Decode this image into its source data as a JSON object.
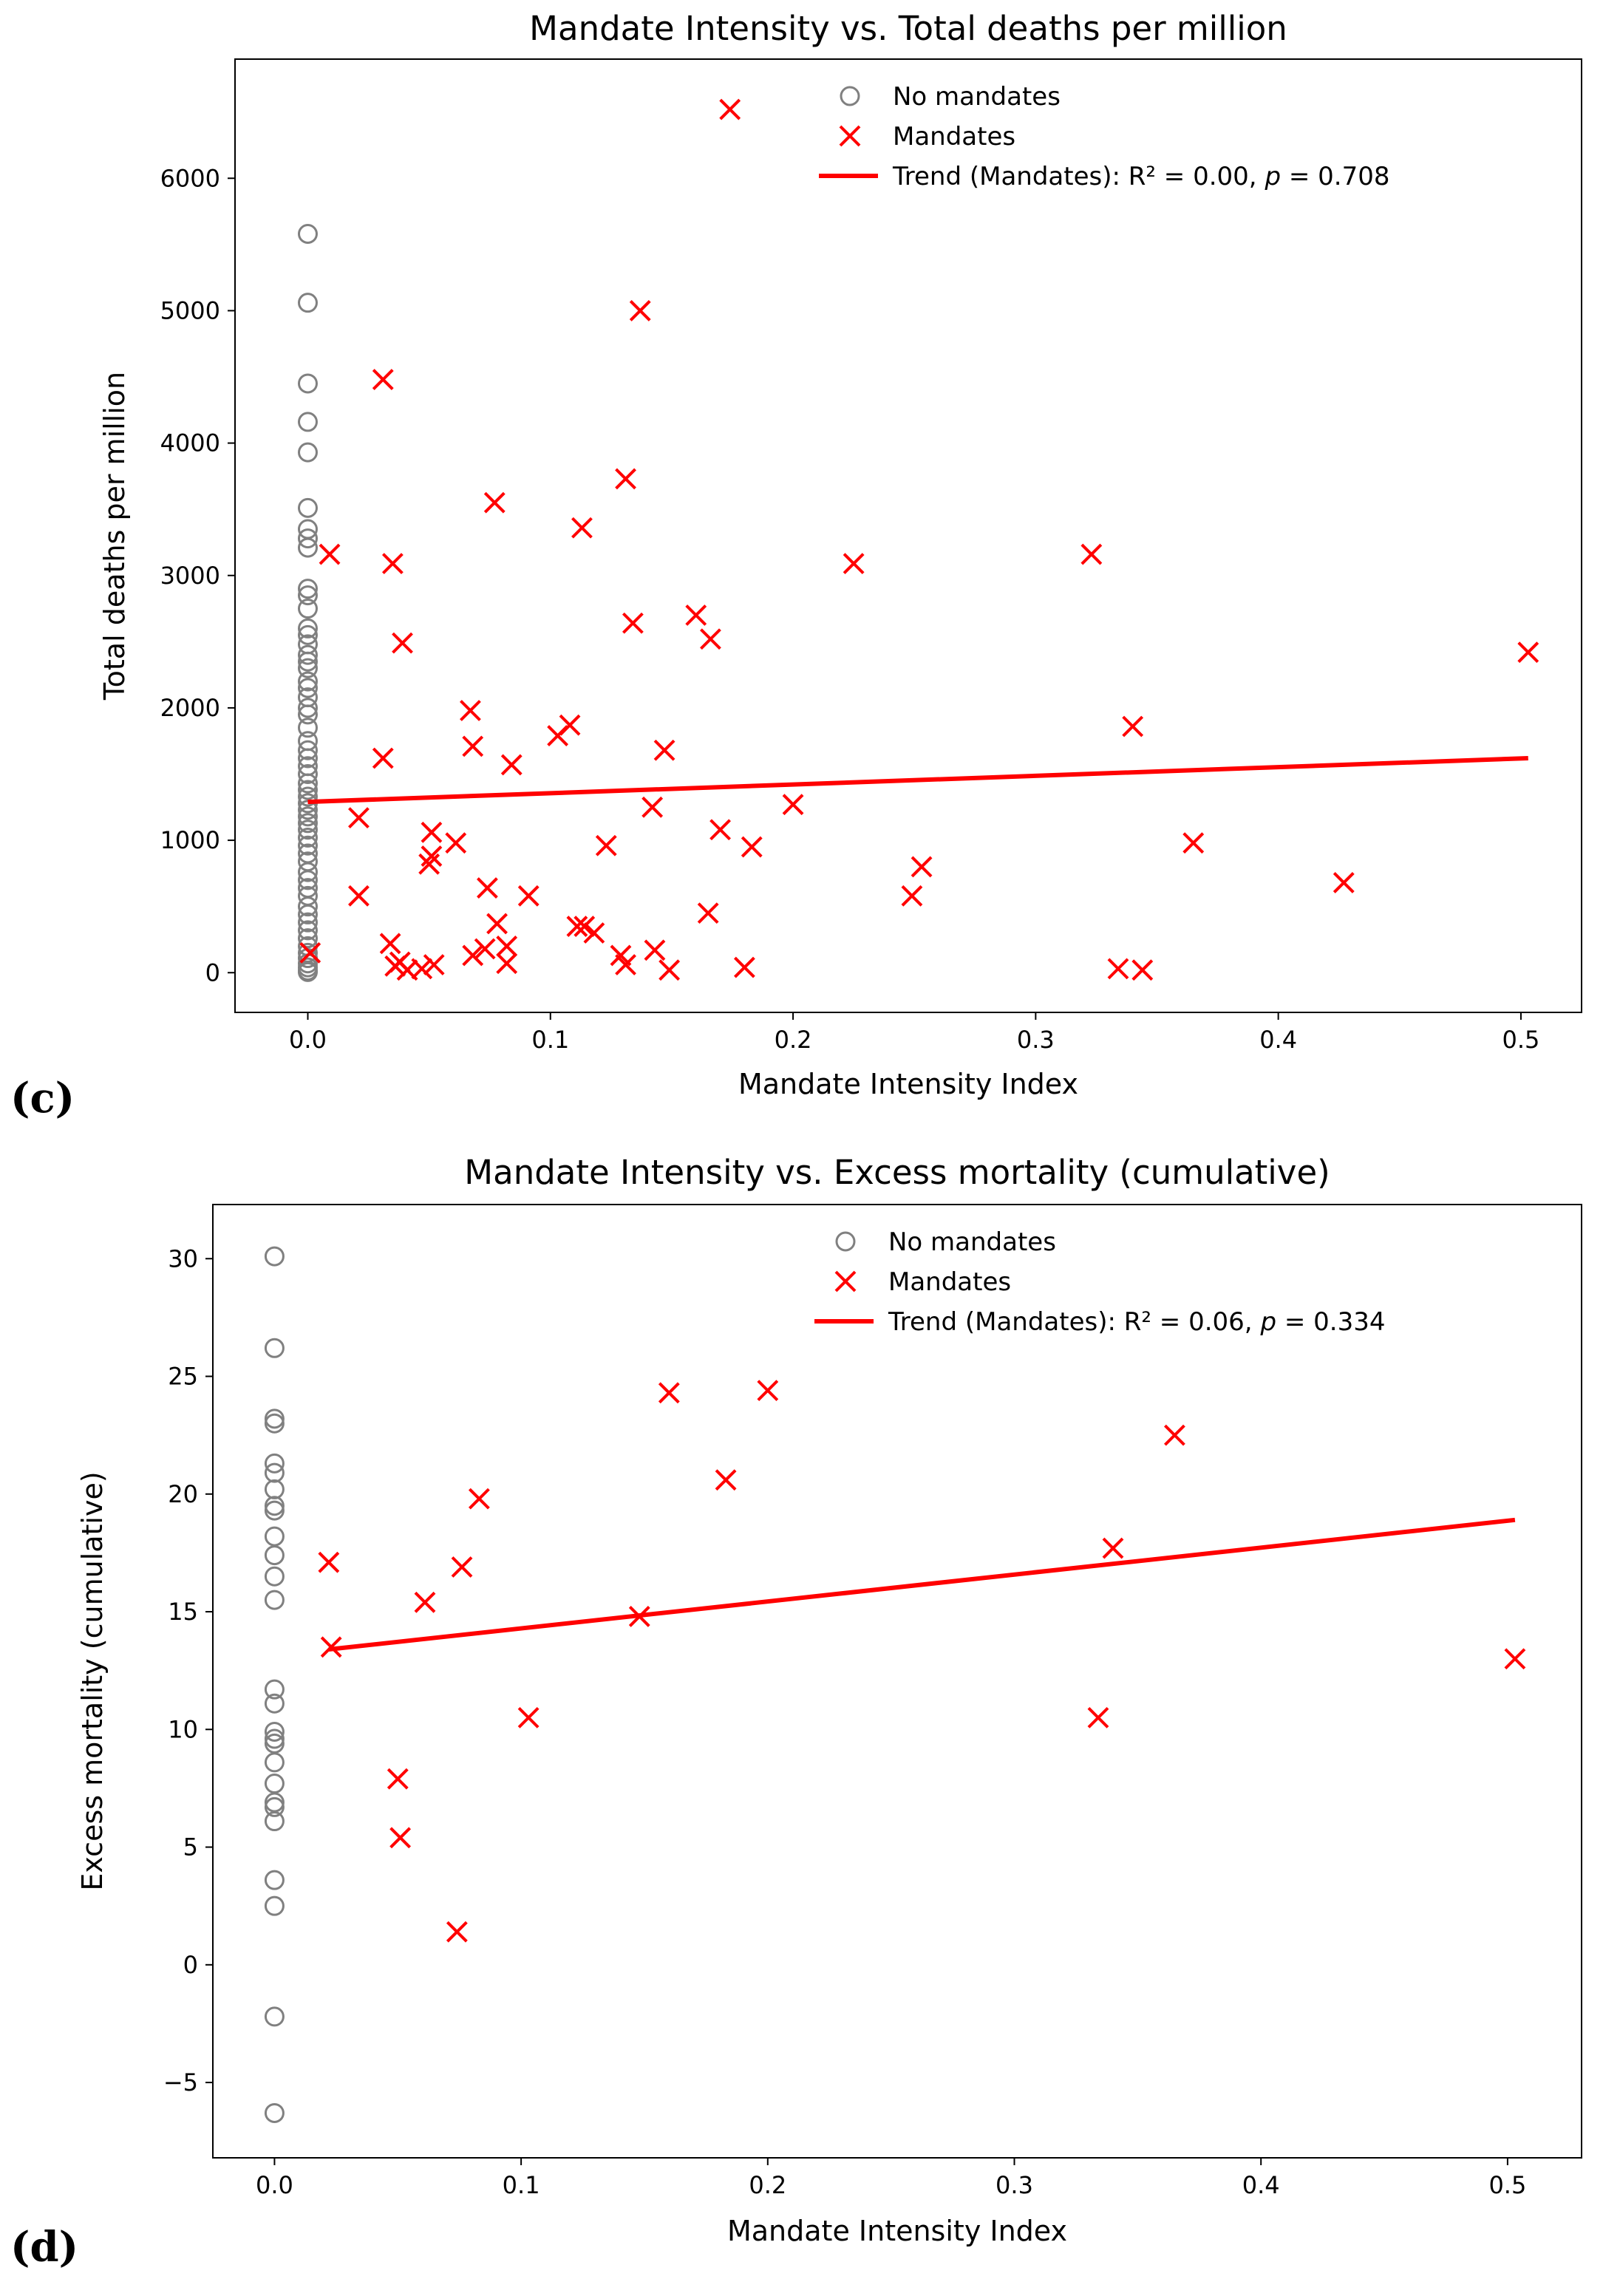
{
  "chart_data": [
    {
      "panel_label": "(c)",
      "type": "scatter",
      "title": "Mandate Intensity vs. Total deaths per million",
      "xlabel": "Mandate Intensity Index",
      "ylabel": "Total deaths per million",
      "xlim": [
        -0.03,
        0.525
      ],
      "ylim": [
        -300,
        6900
      ],
      "xticks": [
        0.0,
        0.1,
        0.2,
        0.3,
        0.4,
        0.5
      ],
      "xtick_labels": [
        "0.0",
        "0.1",
        "0.2",
        "0.3",
        "0.4",
        "0.5"
      ],
      "yticks": [
        0,
        1000,
        2000,
        3000,
        4000,
        5000,
        6000
      ],
      "ytick_labels": [
        "0",
        "1000",
        "2000",
        "3000",
        "4000",
        "5000",
        "6000"
      ],
      "legend_position": "top-center",
      "series": [
        {
          "name": "No mandates",
          "marker": "circle",
          "color": "#808080",
          "points": [
            [
              0,
              5580
            ],
            [
              0,
              5060
            ],
            [
              0,
              4450
            ],
            [
              0,
              4160
            ],
            [
              0,
              3930
            ],
            [
              0,
              3510
            ],
            [
              0,
              3350
            ],
            [
              0,
              3280
            ],
            [
              0,
              3210
            ],
            [
              0,
              2900
            ],
            [
              0,
              2850
            ],
            [
              0,
              2750
            ],
            [
              0,
              2600
            ],
            [
              0,
              2550
            ],
            [
              0,
              2480
            ],
            [
              0,
              2400
            ],
            [
              0,
              2350
            ],
            [
              0,
              2300
            ],
            [
              0,
              2200
            ],
            [
              0,
              2150
            ],
            [
              0,
              2080
            ],
            [
              0,
              2000
            ],
            [
              0,
              1950
            ],
            [
              0,
              1850
            ],
            [
              0,
              1750
            ],
            [
              0,
              1680
            ],
            [
              0,
              1620
            ],
            [
              0,
              1560
            ],
            [
              0,
              1500
            ],
            [
              0,
              1430
            ],
            [
              0,
              1380
            ],
            [
              0,
              1330
            ],
            [
              0,
              1280
            ],
            [
              0,
              1230
            ],
            [
              0,
              1180
            ],
            [
              0,
              1130
            ],
            [
              0,
              1080
            ],
            [
              0,
              1020
            ],
            [
              0,
              960
            ],
            [
              0,
              900
            ],
            [
              0,
              840
            ],
            [
              0,
              760
            ],
            [
              0,
              700
            ],
            [
              0,
              640
            ],
            [
              0,
              580
            ],
            [
              0,
              500
            ],
            [
              0,
              440
            ],
            [
              0,
              380
            ],
            [
              0,
              320
            ],
            [
              0,
              260
            ],
            [
              0,
              200
            ],
            [
              0,
              150
            ],
            [
              0,
              110
            ],
            [
              0,
              70
            ],
            [
              0,
              40
            ],
            [
              0,
              15
            ],
            [
              0,
              5
            ]
          ]
        },
        {
          "name": "Mandates",
          "marker": "x",
          "color": "#ff0000",
          "points": [
            [
              0.174,
              6520
            ],
            [
              0.137,
              5000
            ],
            [
              0.031,
              4480
            ],
            [
              0.131,
              3730
            ],
            [
              0.077,
              3550
            ],
            [
              0.113,
              3360
            ],
            [
              0.009,
              3160
            ],
            [
              0.035,
              3090
            ],
            [
              0.225,
              3090
            ],
            [
              0.323,
              3160
            ],
            [
              0.16,
              2700
            ],
            [
              0.134,
              2640
            ],
            [
              0.039,
              2490
            ],
            [
              0.166,
              2520
            ],
            [
              0.503,
              2420
            ],
            [
              0.067,
              1980
            ],
            [
              0.108,
              1870
            ],
            [
              0.103,
              1790
            ],
            [
              0.34,
              1860
            ],
            [
              0.068,
              1710
            ],
            [
              0.147,
              1680
            ],
            [
              0.031,
              1620
            ],
            [
              0.084,
              1570
            ],
            [
              0.142,
              1250
            ],
            [
              0.2,
              1270
            ],
            [
              0.021,
              1170
            ],
            [
              0.17,
              1080
            ],
            [
              0.051,
              1060
            ],
            [
              0.061,
              980
            ],
            [
              0.123,
              960
            ],
            [
              0.183,
              950
            ],
            [
              0.365,
              980
            ],
            [
              0.051,
              880
            ],
            [
              0.05,
              820
            ],
            [
              0.253,
              800
            ],
            [
              0.427,
              680
            ],
            [
              0.074,
              640
            ],
            [
              0.021,
              580
            ],
            [
              0.091,
              580
            ],
            [
              0.249,
              580
            ],
            [
              0.165,
              450
            ],
            [
              0.078,
              370
            ],
            [
              0.111,
              350
            ],
            [
              0.114,
              350
            ],
            [
              0.118,
              300
            ],
            [
              0.034,
              220
            ],
            [
              0.082,
              200
            ],
            [
              0.073,
              180
            ],
            [
              0.143,
              170
            ],
            [
              0.129,
              130
            ],
            [
              0.068,
              130
            ],
            [
              0.001,
              150
            ],
            [
              0.038,
              80
            ],
            [
              0.036,
              50
            ],
            [
              0.082,
              70
            ],
            [
              0.052,
              60
            ],
            [
              0.131,
              60
            ],
            [
              0.18,
              40
            ],
            [
              0.149,
              20
            ],
            [
              0.041,
              20
            ],
            [
              0.047,
              30
            ],
            [
              0.334,
              30
            ],
            [
              0.344,
              20
            ]
          ]
        }
      ],
      "trend": {
        "name": "Trend (Mandates): R² = 0.00, p = 0.708",
        "label_parts": [
          "Trend (Mandates): R² = 0.00, ",
          "p",
          " = 0.708"
        ],
        "color": "#ff0000",
        "x": [
          0.0,
          0.503
        ],
        "y": [
          1290,
          1620
        ]
      }
    },
    {
      "panel_label": "(d)",
      "type": "scatter",
      "title": "Mandate Intensity vs. Excess mortality (cumulative)",
      "xlabel": "Mandate Intensity Index",
      "ylabel": "Excess mortality (cumulative)",
      "xlim": [
        -0.025,
        0.53
      ],
      "ylim": [
        -8.2,
        32.3
      ],
      "xticks": [
        0.0,
        0.1,
        0.2,
        0.3,
        0.4,
        0.5
      ],
      "xtick_labels": [
        "0.0",
        "0.1",
        "0.2",
        "0.3",
        "0.4",
        "0.5"
      ],
      "yticks": [
        -5,
        0,
        5,
        10,
        15,
        20,
        25,
        30
      ],
      "ytick_labels": [
        "−5",
        "0",
        "5",
        "10",
        "15",
        "20",
        "25",
        "30"
      ],
      "legend_position": "top-center",
      "series": [
        {
          "name": "No mandates",
          "marker": "circle",
          "color": "#808080",
          "points": [
            [
              0,
              30.1
            ],
            [
              0,
              26.2
            ],
            [
              0,
              23.2
            ],
            [
              0,
              23.0
            ],
            [
              0,
              21.3
            ],
            [
              0,
              20.9
            ],
            [
              0,
              20.2
            ],
            [
              0,
              19.5
            ],
            [
              0,
              19.3
            ],
            [
              0,
              18.2
            ],
            [
              0,
              17.4
            ],
            [
              0,
              16.5
            ],
            [
              0,
              15.5
            ],
            [
              0,
              11.7
            ],
            [
              0,
              11.1
            ],
            [
              0,
              9.9
            ],
            [
              0,
              9.6
            ],
            [
              0,
              9.4
            ],
            [
              0,
              8.6
            ],
            [
              0,
              7.7
            ],
            [
              0,
              6.9
            ],
            [
              0,
              6.7
            ],
            [
              0,
              6.1
            ],
            [
              0,
              3.6
            ],
            [
              0,
              2.5
            ],
            [
              0,
              -2.2
            ],
            [
              0,
              -6.3
            ]
          ]
        },
        {
          "name": "Mandates",
          "marker": "x",
          "color": "#ff0000",
          "points": [
            [
              0.16,
              24.3
            ],
            [
              0.2,
              24.4
            ],
            [
              0.365,
              22.5
            ],
            [
              0.183,
              20.6
            ],
            [
              0.083,
              19.8
            ],
            [
              0.34,
              17.7
            ],
            [
              0.022,
              17.1
            ],
            [
              0.076,
              16.9
            ],
            [
              0.061,
              15.4
            ],
            [
              0.148,
              14.8
            ],
            [
              0.023,
              13.5
            ],
            [
              0.503,
              13.0
            ],
            [
              0.103,
              10.5
            ],
            [
              0.334,
              10.5
            ],
            [
              0.05,
              7.9
            ],
            [
              0.051,
              5.4
            ],
            [
              0.074,
              1.4
            ]
          ]
        }
      ],
      "trend": {
        "name": "Trend (Mandates): R² = 0.06, p = 0.334",
        "label_parts": [
          "Trend (Mandates): R² = 0.06, ",
          "p",
          " = 0.334"
        ],
        "color": "#ff0000",
        "x": [
          0.022,
          0.503
        ],
        "y": [
          13.4,
          18.9
        ]
      }
    }
  ]
}
